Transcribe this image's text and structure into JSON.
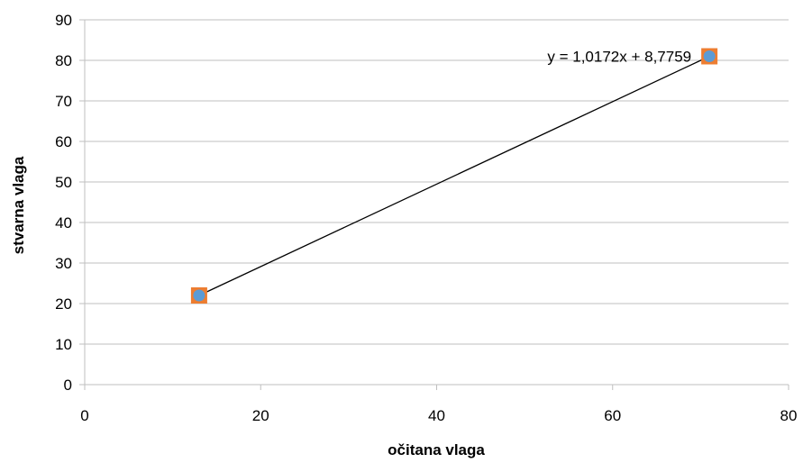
{
  "chart_data": {
    "type": "scatter",
    "title": "",
    "xlabel": "očitana vlaga",
    "ylabel": "stvarna vlaga",
    "xlim": [
      0,
      80
    ],
    "ylim": [
      0,
      90
    ],
    "xticks": [
      0,
      20,
      40,
      60,
      80
    ],
    "yticks": [
      0,
      10,
      20,
      30,
      40,
      50,
      60,
      70,
      80,
      90
    ],
    "grid": "horizontal",
    "legend": "none",
    "series": [
      {
        "marker": "square",
        "color": "#ED7D31",
        "points": [
          {
            "x": 13,
            "y": 22
          },
          {
            "x": 71,
            "y": 81
          }
        ]
      },
      {
        "marker": "circle",
        "color": "#5B9BD5",
        "points": [
          {
            "x": 13,
            "y": 22
          },
          {
            "x": 71,
            "y": 81
          }
        ]
      }
    ],
    "trendline": {
      "type": "linear",
      "slope": 1.0172,
      "intercept": 8.7759,
      "x_range": [
        13,
        71
      ],
      "color": "#000000",
      "label": "y = 1,0172x + 8,7759"
    }
  }
}
